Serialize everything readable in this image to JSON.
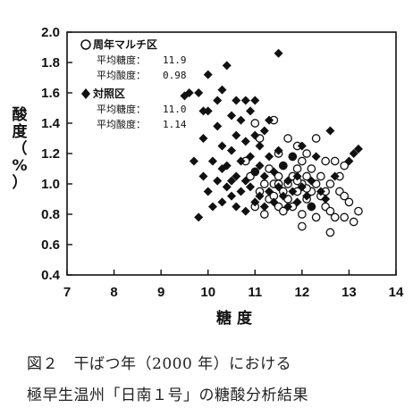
{
  "chart_data": {
    "type": "scatter",
    "title": "",
    "xlabel": "糖 度",
    "ylabel": "酸度（%）",
    "xlim": [
      7,
      14
    ],
    "ylim": [
      0.4,
      2.0
    ],
    "xticks": [
      "7",
      "8",
      "9",
      "10",
      "11",
      "12",
      "13",
      "14"
    ],
    "yticks": [
      "0.4",
      "0.6",
      "0.8",
      "1.0",
      "1.2",
      "1.4",
      "1.6",
      "1.8",
      "2.0"
    ],
    "grid": false,
    "legend_position": "top-left",
    "series": [
      {
        "name": "周年マルチ区",
        "marker": "open-circle",
        "stats": [
          {
            "label": "平均糖度：",
            "value": "11.9"
          },
          {
            "label": "平均酸度：",
            "value": "0.98"
          }
        ],
        "points": [
          [
            10.8,
            1.15
          ],
          [
            10.9,
            1.05
          ],
          [
            11.0,
            0.85
          ],
          [
            11.0,
            1.4
          ],
          [
            11.1,
            0.95
          ],
          [
            11.1,
            1.3
          ],
          [
            11.2,
            0.8
          ],
          [
            11.2,
            1.0
          ],
          [
            11.3,
            0.9
          ],
          [
            11.3,
            1.1
          ],
          [
            11.4,
            1.42
          ],
          [
            11.4,
            1.0
          ],
          [
            11.5,
            0.85
          ],
          [
            11.5,
            1.05
          ],
          [
            11.5,
            1.2
          ],
          [
            11.6,
            0.95
          ],
          [
            11.6,
            1.12
          ],
          [
            11.6,
            0.82
          ],
          [
            11.7,
            1.0
          ],
          [
            11.7,
            1.3
          ],
          [
            11.7,
            0.9
          ],
          [
            11.8,
            1.05
          ],
          [
            11.8,
            1.18
          ],
          [
            11.8,
            0.85
          ],
          [
            11.9,
            0.95
          ],
          [
            11.9,
            1.1
          ],
          [
            11.9,
            1.25
          ],
          [
            12.0,
            0.8
          ],
          [
            12.0,
            1.0
          ],
          [
            12.0,
            1.15
          ],
          [
            12.0,
            0.72
          ],
          [
            12.1,
            0.9
          ],
          [
            12.1,
            1.05
          ],
          [
            12.1,
            1.2
          ],
          [
            12.2,
            0.95
          ],
          [
            12.2,
            0.85
          ],
          [
            12.2,
            1.1
          ],
          [
            12.3,
            1.0
          ],
          [
            12.3,
            0.78
          ],
          [
            12.3,
            1.3
          ],
          [
            12.4,
            0.92
          ],
          [
            12.4,
            1.05
          ],
          [
            12.5,
            0.85
          ],
          [
            12.5,
            1.15
          ],
          [
            12.5,
            0.95
          ],
          [
            12.6,
            0.68
          ],
          [
            12.6,
            1.0
          ],
          [
            12.6,
            0.82
          ],
          [
            12.7,
            1.15
          ],
          [
            12.8,
            0.95
          ],
          [
            12.9,
            0.78
          ],
          [
            12.9,
            0.92
          ],
          [
            13.0,
            0.88
          ],
          [
            13.1,
            0.75
          ],
          [
            13.2,
            0.82
          ],
          [
            12.8,
            1.05
          ],
          [
            11.5,
            1.0
          ],
          [
            11.9,
            1.02
          ],
          [
            12.1,
            0.97
          ],
          [
            11.4,
            0.92
          ],
          [
            11.0,
            1.08
          ],
          [
            12.7,
            0.78
          ],
          [
            12.9,
            1.12
          ]
        ]
      },
      {
        "name": "対照区",
        "marker": "filled-diamond",
        "stats": [
          {
            "label": "平均糖度：",
            "value": "11.0"
          },
          {
            "label": "平均酸度：",
            "value": "1.14"
          }
        ],
        "points": [
          [
            9.5,
            1.58
          ],
          [
            9.7,
            1.15
          ],
          [
            9.8,
            0.78
          ],
          [
            9.8,
            1.6
          ],
          [
            9.9,
            1.05
          ],
          [
            9.9,
            1.3
          ],
          [
            10.0,
            0.95
          ],
          [
            10.0,
            1.72
          ],
          [
            10.0,
            1.48
          ],
          [
            10.1,
            0.85
          ],
          [
            10.1,
            1.15
          ],
          [
            10.2,
            1.02
          ],
          [
            10.2,
            1.38
          ],
          [
            10.3,
            0.88
          ],
          [
            10.3,
            1.25
          ],
          [
            10.3,
            1.62
          ],
          [
            10.4,
            0.98
          ],
          [
            10.4,
            1.12
          ],
          [
            10.4,
            1.78
          ],
          [
            10.5,
            0.92
          ],
          [
            10.5,
            1.22
          ],
          [
            10.5,
            1.45
          ],
          [
            10.6,
            0.85
          ],
          [
            10.6,
            1.05
          ],
          [
            10.6,
            1.32
          ],
          [
            10.6,
            1.55
          ],
          [
            10.7,
            0.95
          ],
          [
            10.7,
            1.15
          ],
          [
            10.7,
            1.42
          ],
          [
            10.8,
            0.82
          ],
          [
            10.8,
            1.02
          ],
          [
            10.8,
            1.28
          ],
          [
            10.9,
            0.98
          ],
          [
            10.9,
            1.18
          ],
          [
            10.9,
            1.48
          ],
          [
            11.0,
            0.88
          ],
          [
            11.0,
            1.08
          ],
          [
            11.0,
            1.32
          ],
          [
            11.0,
            1.55
          ],
          [
            11.1,
            0.92
          ],
          [
            11.1,
            1.12
          ],
          [
            11.1,
            1.25
          ],
          [
            11.2,
            0.85
          ],
          [
            11.2,
            1.05
          ],
          [
            11.2,
            1.35
          ],
          [
            11.3,
            0.95
          ],
          [
            11.3,
            1.18
          ],
          [
            11.4,
            0.88
          ],
          [
            11.4,
            1.08
          ],
          [
            11.5,
            1.86
          ],
          [
            11.5,
            0.98
          ],
          [
            11.5,
            1.22
          ],
          [
            11.6,
            0.92
          ],
          [
            11.6,
            1.12
          ],
          [
            11.7,
            1.02
          ],
          [
            11.7,
            0.85
          ],
          [
            11.8,
            1.18
          ],
          [
            11.8,
            0.95
          ],
          [
            11.9,
            1.05
          ],
          [
            11.9,
            0.88
          ],
          [
            12.0,
            1.25
          ],
          [
            12.0,
            0.98
          ],
          [
            12.1,
            0.92
          ],
          [
            12.2,
            1.02
          ],
          [
            12.2,
            0.85
          ],
          [
            12.3,
            1.18
          ],
          [
            12.4,
            0.95
          ],
          [
            12.5,
            0.9
          ],
          [
            12.6,
            1.35
          ],
          [
            12.7,
            1.05
          ],
          [
            13.0,
            1.15
          ],
          [
            13.1,
            1.2
          ],
          [
            13.2,
            1.23
          ],
          [
            9.9,
            1.48
          ],
          [
            10.2,
            1.55
          ],
          [
            10.5,
            1.02
          ],
          [
            10.8,
            1.55
          ],
          [
            11.3,
            1.42
          ],
          [
            9.6,
            1.6
          ],
          [
            10.3,
            1.1
          ]
        ]
      }
    ]
  },
  "caption": {
    "line1": "図２　干ばつ年（2000 年）における",
    "line2": "極早生温州「日南１号」の糖酸分析結果"
  }
}
